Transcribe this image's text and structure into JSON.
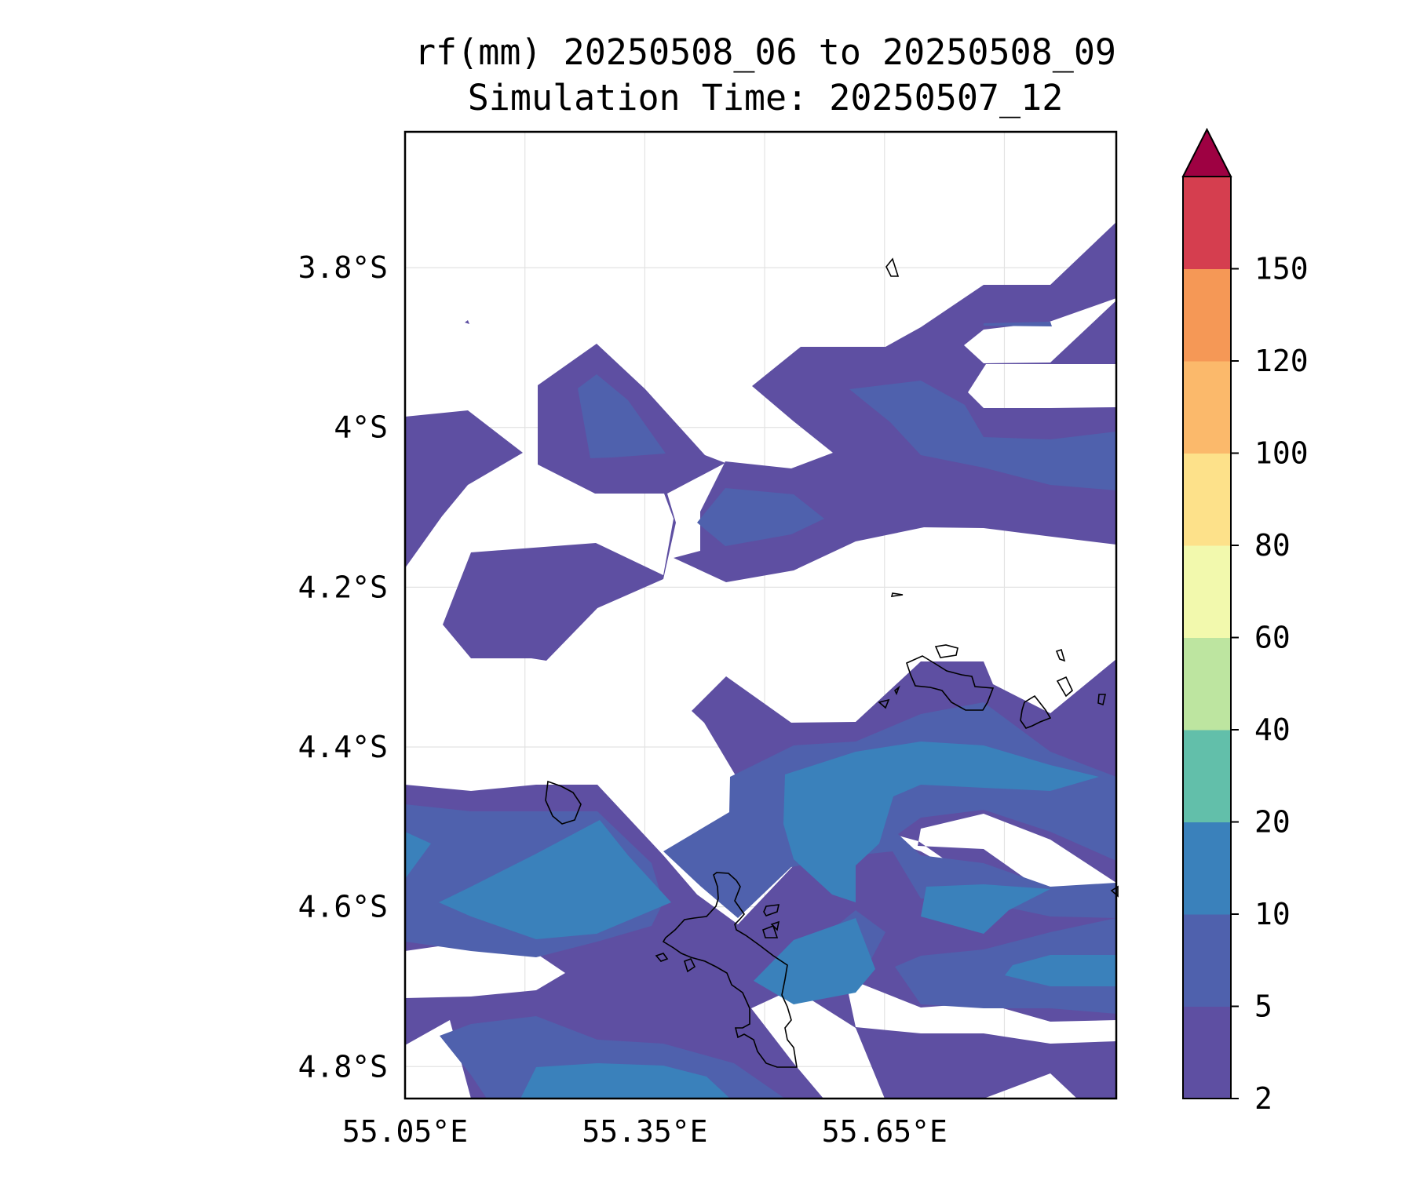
{
  "title": {
    "line1": "rf(mm) 20250508_06 to 20250508_09",
    "line2": "Simulation Time: 20250507_12"
  },
  "chart_data": {
    "type": "filled-contour map",
    "variable": "rf(mm)",
    "extent": {
      "lon": [
        55.05,
        55.94
      ],
      "lat": [
        -3.63,
        -4.84
      ]
    },
    "x_ticks": [
      55.05,
      55.35,
      55.65
    ],
    "x_tick_labels": [
      "55.05°E",
      "55.35°E",
      "55.65°E"
    ],
    "y_ticks": [
      -3.8,
      -4.0,
      -4.2,
      -4.4,
      -4.6,
      -4.8
    ],
    "y_tick_labels": [
      "3.8°S",
      "4°S",
      "4.2°S",
      "4.4°S",
      "4.6°S",
      "4.8°S"
    ],
    "gridlines": true,
    "grid_lon": [
      55.05,
      55.2,
      55.35,
      55.5,
      55.65,
      55.8
    ],
    "colorbar": {
      "position": "right",
      "extend": "max",
      "levels": [
        2,
        5,
        10,
        20,
        40,
        60,
        80,
        100,
        120,
        150
      ],
      "labels": [
        "2",
        "5",
        "10",
        "20",
        "40",
        "60",
        "80",
        "100",
        "120",
        "150"
      ],
      "colors": [
        "#5e4fa2",
        "#4f61ad",
        "#3a81bb",
        "#62bfaa",
        "#bde5a0",
        "#f2f9ad",
        "#fde18a",
        "#fbb96b",
        "#f59856",
        "#d53e4f"
      ],
      "extend_color": "#9e0142"
    },
    "region_levels": {
      "light": "2-5",
      "medium": "5-10",
      "dark": "10-20"
    },
    "coastline_color": "#000000"
  }
}
